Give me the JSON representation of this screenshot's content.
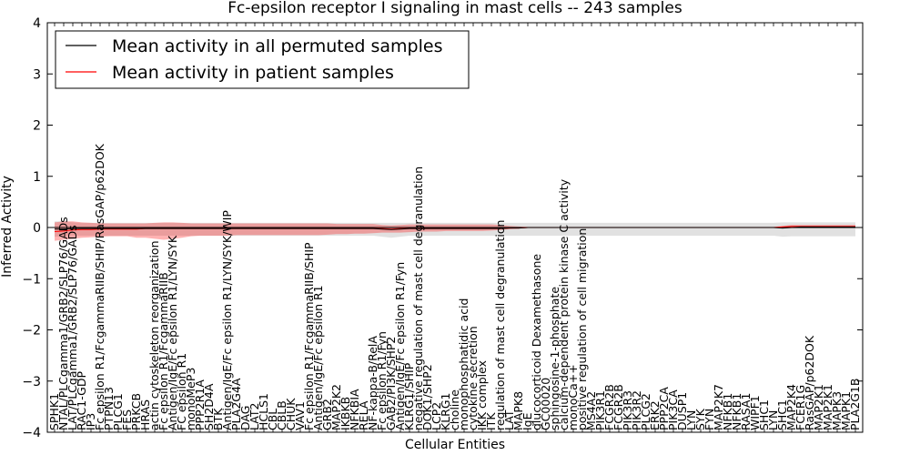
{
  "chart_data": {
    "type": "line",
    "title": "Fc-epsilon receptor I signaling in mast cells -- 243 samples",
    "xlabel": "Cellular Entities",
    "ylabel": "Inferred Activity",
    "ylim": [
      -4,
      4
    ],
    "yticks": [
      -4,
      -3,
      -2,
      -1,
      0,
      1,
      2,
      3,
      4
    ],
    "ytick_labels": [
      "−4",
      "−3",
      "−2",
      "−1",
      "0",
      "1",
      "2",
      "3",
      "4"
    ],
    "legend": {
      "position": "top-left",
      "entries": [
        {
          "label": "Mean activity in all permuted samples",
          "color": "#000000"
        },
        {
          "label": "Mean activity in patient samples",
          "color": "#ff0000"
        }
      ]
    },
    "categories": [
      "SPHK1",
      "NTAL/PLCgamma1/GRB2/SLP76/GADs",
      "LAT/PLCgamma1/GRB2/SLP76/GADs",
      "RAC1-GDP",
      "IP3",
      "Fc epsilon R1/FcgammaRIIB/SHIP/RasGAP/p62DOK",
      "PTPN13",
      "PLCG1",
      "FES",
      "PRKCB",
      "HRAS",
      "actin cytoskeleton reorganization",
      "Fc epsilon R1/FcgammaRIIB",
      "Antigen/IgE/Fc epsilon R1/LYN/SYK",
      "FC epsilon R1",
      "monoMeP3",
      "PPP2R1A",
      "SH2D4A",
      "BTK",
      "Antigen/IgE/Fc epsilon R1/LYN/SYK/WIP",
      "PLA2G4A",
      "DAG",
      "LAT2",
      "HCLS1",
      "CBL",
      "CBLB",
      "CHUK",
      "VAV1",
      "Fc epsilon R1/FcgammaRIIB/SHIP",
      "Antigen/IgE/Fc epsilon R1",
      "GRB2",
      "MAP2K2",
      "IKBKB",
      "NFKBIA",
      "RELA",
      "NF-kappa-B/RelA",
      "Fc epsilon R1/Fyn",
      "GAB2/PI3K/SHP2",
      "Antigen/IgE/Fc epsilon R1/Fyn",
      "KLRG1/SHIP",
      "negative regulation of mast cell degranulation",
      "DOK1/SHP2",
      "LCP2",
      "KLRG1",
      "choline",
      "monophosphatidic acid",
      "cytokine secretion",
      "IKK complex",
      "ITK",
      "regulation of mast cell degranulation",
      "LAT",
      "MAPK8",
      "IgE",
      "glucocorticoid Dexamethasone",
      "GC00020",
      "sphingosine-1-phosphate",
      "calcium-dependent protein kinase C activity",
      "monoCa++",
      "positive regulation of cell migration",
      "MS4A2",
      "PIK3R1",
      "FCGR2B",
      "FCGR2B",
      "PIK3R3",
      "PIK3R2",
      "PLCG2",
      "ERK2",
      "PPP2CA",
      "PIK3CA",
      "DUSP1",
      "LYN",
      "SYK",
      "FYN",
      "MAP2K7",
      "NFKB1",
      "NFKB1",
      "RASA1",
      "WIPF1",
      "SHC1",
      "LYN",
      "SHC1",
      "MAP2K4",
      "FCER1G",
      "RasGAP/p62DOK",
      "MAP2K1",
      "MAP2K1",
      "MAPK3",
      "MAPK1",
      "PLA2G1B"
    ],
    "series": [
      {
        "name": "Mean activity in patient samples",
        "color": "#ff0000",
        "mean": [
          -0.08,
          -0.07,
          -0.05,
          -0.04,
          -0.04,
          -0.03,
          -0.03,
          -0.03,
          -0.03,
          -0.03,
          -0.02,
          -0.02,
          -0.02,
          -0.02,
          -0.02,
          -0.02,
          -0.02,
          -0.02,
          -0.02,
          -0.02,
          -0.02,
          -0.02,
          -0.02,
          -0.02,
          -0.02,
          -0.02,
          -0.02,
          -0.02,
          -0.02,
          -0.02,
          -0.02,
          -0.02,
          -0.02,
          -0.02,
          -0.02,
          -0.02,
          -0.02,
          -0.03,
          -0.02,
          -0.02,
          -0.02,
          -0.02,
          -0.02,
          -0.02,
          -0.02,
          -0.02,
          -0.02,
          -0.02,
          -0.02,
          -0.02,
          -0.01,
          -0.01,
          0.0,
          0.0,
          0.0,
          0.0,
          0.0,
          0.0,
          0.0,
          0.0,
          0.0,
          0.0,
          0.0,
          0.0,
          0.0,
          0.0,
          0.0,
          0.0,
          0.0,
          0.0,
          0.0,
          0.0,
          0.0,
          0.0,
          0.0,
          0.0,
          0.0,
          0.0,
          0.0,
          0.0,
          0.01,
          0.02,
          0.02,
          0.02,
          0.02,
          0.02,
          0.02,
          0.02,
          0.02
        ],
        "upper": [
          0.1,
          0.12,
          0.12,
          0.1,
          0.09,
          0.08,
          0.08,
          0.08,
          0.08,
          0.08,
          0.08,
          0.09,
          0.1,
          0.1,
          0.09,
          0.08,
          0.08,
          0.08,
          0.08,
          0.08,
          0.08,
          0.08,
          0.08,
          0.08,
          0.08,
          0.08,
          0.08,
          0.08,
          0.08,
          0.08,
          0.08,
          0.07,
          0.07,
          0.07,
          0.07,
          0.07,
          0.05,
          0.04,
          0.05,
          0.06,
          0.06,
          0.06,
          0.06,
          0.06,
          0.06,
          0.06,
          0.06,
          0.06,
          0.06,
          0.05,
          0.03,
          0.02,
          0.01,
          0.01,
          0.01,
          0.01,
          0.01,
          0.01,
          0.01,
          0.01,
          0.01,
          0.01,
          0.01,
          0.01,
          0.01,
          0.01,
          0.01,
          0.01,
          0.01,
          0.01,
          0.01,
          0.01,
          0.01,
          0.01,
          0.01,
          0.01,
          0.01,
          0.01,
          0.01,
          0.01,
          0.03,
          0.05,
          0.05,
          0.05,
          0.05,
          0.05,
          0.05,
          0.05,
          0.05
        ],
        "lower": [
          -0.26,
          -0.24,
          -0.22,
          -0.2,
          -0.19,
          -0.18,
          -0.17,
          -0.17,
          -0.17,
          -0.2,
          -0.2,
          -0.22,
          -0.24,
          -0.22,
          -0.2,
          -0.17,
          -0.16,
          -0.16,
          -0.16,
          -0.16,
          -0.15,
          -0.15,
          -0.15,
          -0.15,
          -0.15,
          -0.15,
          -0.15,
          -0.15,
          -0.15,
          -0.15,
          -0.14,
          -0.13,
          -0.13,
          -0.12,
          -0.12,
          -0.11,
          -0.1,
          -0.1,
          -0.1,
          -0.09,
          -0.08,
          -0.08,
          -0.08,
          -0.07,
          -0.07,
          -0.07,
          -0.07,
          -0.07,
          -0.06,
          -0.05,
          -0.03,
          -0.02,
          -0.01,
          -0.01,
          -0.01,
          -0.01,
          -0.01,
          -0.01,
          -0.01,
          -0.01,
          -0.01,
          -0.01,
          -0.01,
          -0.01,
          -0.01,
          -0.01,
          -0.01,
          -0.01,
          -0.01,
          -0.01,
          -0.01,
          -0.01,
          -0.01,
          -0.01,
          -0.01,
          -0.01,
          -0.01,
          -0.01,
          -0.01,
          -0.01,
          -0.01,
          -0.01,
          -0.01,
          -0.01,
          -0.01,
          -0.01,
          -0.01,
          -0.01,
          -0.01
        ]
      },
      {
        "name": "Mean activity in all permuted samples",
        "color": "#000000",
        "mean": [
          -0.03,
          -0.03,
          -0.02,
          -0.02,
          -0.02,
          -0.02,
          -0.02,
          -0.02,
          -0.02,
          -0.02,
          -0.02,
          -0.02,
          -0.02,
          -0.02,
          -0.02,
          -0.02,
          -0.02,
          -0.02,
          -0.02,
          -0.02,
          -0.02,
          -0.02,
          -0.02,
          -0.02,
          -0.02,
          -0.02,
          -0.02,
          -0.02,
          -0.02,
          -0.02,
          -0.02,
          -0.02,
          -0.02,
          -0.02,
          -0.02,
          -0.02,
          -0.03,
          -0.04,
          -0.03,
          -0.02,
          -0.02,
          -0.02,
          -0.02,
          -0.02,
          -0.02,
          -0.02,
          -0.02,
          -0.02,
          -0.02,
          -0.02,
          -0.01,
          -0.01,
          0.0,
          0.0,
          0.0,
          0.0,
          0.0,
          0.0,
          0.0,
          0.0,
          0.0,
          0.0,
          0.0,
          0.0,
          0.0,
          0.0,
          0.0,
          0.0,
          0.0,
          0.0,
          0.0,
          0.0,
          0.0,
          0.0,
          0.0,
          0.0,
          0.0,
          0.0,
          0.0,
          0.0,
          -0.01,
          0.0,
          0.01,
          0.01,
          0.01,
          0.01,
          0.01,
          0.01,
          0.01
        ],
        "upper": [
          0.12,
          0.12,
          0.1,
          0.09,
          0.09,
          0.09,
          0.09,
          0.09,
          0.09,
          0.09,
          0.09,
          0.09,
          0.09,
          0.09,
          0.09,
          0.09,
          0.09,
          0.09,
          0.09,
          0.09,
          0.09,
          0.09,
          0.09,
          0.09,
          0.09,
          0.09,
          0.09,
          0.09,
          0.09,
          0.09,
          0.09,
          0.09,
          0.09,
          0.09,
          0.09,
          0.09,
          0.09,
          0.09,
          0.09,
          0.09,
          0.09,
          0.09,
          0.09,
          0.09,
          0.09,
          0.09,
          0.09,
          0.09,
          0.09,
          0.09,
          0.09,
          0.09,
          0.09,
          0.09,
          0.09,
          0.09,
          0.09,
          0.09,
          0.09,
          0.09,
          0.09,
          0.09,
          0.09,
          0.09,
          0.09,
          0.09,
          0.09,
          0.09,
          0.09,
          0.09,
          0.09,
          0.09,
          0.09,
          0.09,
          0.09,
          0.09,
          0.09,
          0.09,
          0.09,
          0.09,
          0.1,
          0.1,
          0.1,
          0.1,
          0.1,
          0.1,
          0.1,
          0.1,
          0.1
        ],
        "lower": [
          -0.18,
          -0.17,
          -0.16,
          -0.16,
          -0.16,
          -0.16,
          -0.16,
          -0.16,
          -0.16,
          -0.16,
          -0.16,
          -0.16,
          -0.16,
          -0.16,
          -0.16,
          -0.16,
          -0.16,
          -0.16,
          -0.16,
          -0.16,
          -0.16,
          -0.16,
          -0.16,
          -0.16,
          -0.16,
          -0.16,
          -0.16,
          -0.16,
          -0.16,
          -0.16,
          -0.16,
          -0.16,
          -0.16,
          -0.16,
          -0.16,
          -0.16,
          -0.18,
          -0.2,
          -0.18,
          -0.16,
          -0.16,
          -0.16,
          -0.16,
          -0.16,
          -0.16,
          -0.16,
          -0.16,
          -0.16,
          -0.16,
          -0.16,
          -0.16,
          -0.16,
          -0.16,
          -0.16,
          -0.16,
          -0.16,
          -0.16,
          -0.16,
          -0.16,
          -0.16,
          -0.16,
          -0.16,
          -0.16,
          -0.16,
          -0.16,
          -0.16,
          -0.16,
          -0.16,
          -0.16,
          -0.16,
          -0.16,
          -0.16,
          -0.16,
          -0.16,
          -0.16,
          -0.16,
          -0.16,
          -0.16,
          -0.16,
          -0.16,
          -0.18,
          -0.17,
          -0.17,
          -0.17,
          -0.17,
          -0.17,
          -0.17,
          -0.17,
          -0.17
        ]
      }
    ],
    "grid": false
  }
}
